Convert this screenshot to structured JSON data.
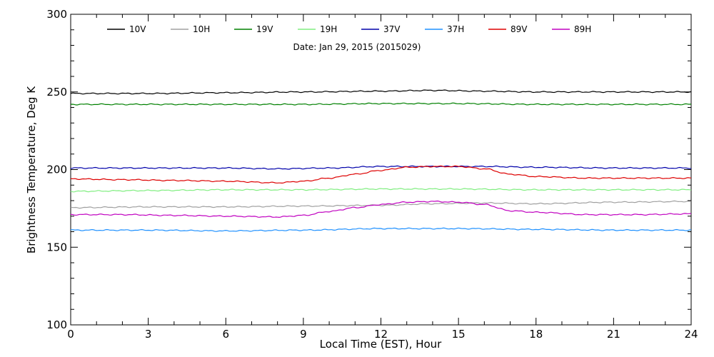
{
  "chart_data": {
    "type": "line",
    "title": "",
    "annotation": "Date: Jan 29, 2015 (2015029)",
    "xlabel": "Local Time (EST), Hour",
    "ylabel": "Brightness Temperature, Deg K",
    "xlim": [
      0,
      24
    ],
    "ylim": [
      100,
      300
    ],
    "x_ticks": [
      0,
      3,
      6,
      9,
      12,
      15,
      18,
      21,
      24
    ],
    "y_ticks": [
      100,
      150,
      200,
      250,
      300
    ],
    "grid": false,
    "legend_position": "top",
    "series": [
      {
        "name": "10V",
        "color": "#000000",
        "x": [
          0,
          3,
          6,
          9,
          12,
          14,
          16,
          18,
          21,
          24
        ],
        "y": [
          249,
          249,
          249.5,
          250,
          250.5,
          251,
          250.5,
          250,
          250,
          250
        ]
      },
      {
        "name": "10H",
        "color": "#a0a0a0",
        "x": [
          0,
          3,
          6,
          9,
          12,
          14,
          16,
          18,
          21,
          24
        ],
        "y": [
          175.5,
          176,
          176,
          176.5,
          177,
          178,
          178.5,
          178,
          179,
          179.5
        ]
      },
      {
        "name": "19V",
        "color": "#008000",
        "x": [
          0,
          3,
          6,
          9,
          12,
          15,
          18,
          21,
          24
        ],
        "y": [
          242,
          242,
          242,
          242,
          242.5,
          242.5,
          242,
          242,
          242
        ]
      },
      {
        "name": "19H",
        "color": "#80ee80",
        "x": [
          0,
          3,
          6,
          9,
          12,
          15,
          18,
          21,
          24
        ],
        "y": [
          186,
          186.5,
          187,
          187,
          187.5,
          187.5,
          187,
          187,
          187
        ]
      },
      {
        "name": "37V",
        "color": "#0000aa",
        "x": [
          0,
          3,
          6,
          8,
          10,
          12,
          14,
          16,
          18,
          21,
          24
        ],
        "y": [
          201,
          201,
          201,
          200.5,
          201,
          202,
          202,
          202,
          201.5,
          201,
          201
        ]
      },
      {
        "name": "37H",
        "color": "#1e90ff",
        "x": [
          0,
          3,
          6,
          9,
          12,
          15,
          18,
          21,
          24
        ],
        "y": [
          161,
          161,
          160.5,
          161,
          162,
          162,
          161.5,
          161,
          161
        ]
      },
      {
        "name": "89V",
        "color": "#dd0000",
        "x": [
          0,
          2,
          4,
          6,
          8,
          9,
          10,
          11,
          12,
          13,
          14,
          15,
          16,
          17,
          18,
          20,
          22,
          24
        ],
        "y": [
          194,
          193.5,
          193,
          192.5,
          191.5,
          192.5,
          194.5,
          197,
          199.5,
          201.5,
          202,
          202,
          200.5,
          197,
          195.5,
          194.5,
          194.5,
          194.5
        ]
      },
      {
        "name": "89H",
        "color": "#c000c0",
        "x": [
          0,
          2,
          4,
          6,
          8,
          9,
          10,
          11,
          12,
          13,
          14,
          15,
          16,
          17,
          18,
          20,
          22,
          24
        ],
        "y": [
          171,
          171,
          170.5,
          170,
          169.5,
          170.5,
          173,
          175.5,
          177.5,
          179,
          179.5,
          179,
          177.5,
          173.5,
          172.5,
          171,
          171,
          171.5
        ]
      }
    ]
  }
}
